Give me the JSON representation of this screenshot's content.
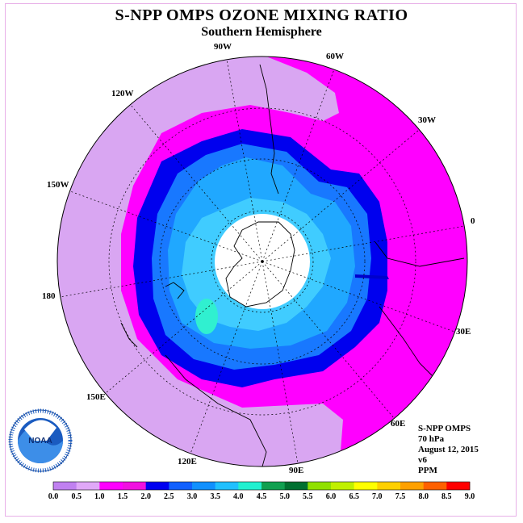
{
  "title": "S-NPP OMPS OZONE MIXING RATIO",
  "subtitle": "Southern Hemisphere",
  "longitude_labels": [
    {
      "id": "90w",
      "text": "90W"
    },
    {
      "id": "60w",
      "text": "60W"
    },
    {
      "id": "120w",
      "text": "120W"
    },
    {
      "id": "30w",
      "text": "30W"
    },
    {
      "id": "150w",
      "text": "150W"
    },
    {
      "id": "0",
      "text": "0"
    },
    {
      "id": "180",
      "text": "180"
    },
    {
      "id": "30e",
      "text": "30E"
    },
    {
      "id": "150e",
      "text": "150E"
    },
    {
      "id": "60e",
      "text": "60E"
    },
    {
      "id": "120e",
      "text": "120E"
    },
    {
      "id": "90e",
      "text": "90E"
    }
  ],
  "info": {
    "instrument": "S-NPP OMPS",
    "level": "70 hPa",
    "date": "August 12, 2015",
    "version": "v6",
    "units": "PPM"
  },
  "logo": {
    "text": "NOAA"
  },
  "colorbar": {
    "labels": [
      "0.0",
      "0.5",
      "1.0",
      "1.5",
      "2.0",
      "2.5",
      "3.0",
      "3.5",
      "4.0",
      "4.5",
      "5.0",
      "5.5",
      "6.0",
      "6.5",
      "7.0",
      "7.5",
      "8.0",
      "8.5",
      "9.0"
    ],
    "colors": [
      "#c080f0",
      "#e0a8f8",
      "#ff00ff",
      "#f010e0",
      "#0000f0",
      "#1060ff",
      "#1090ff",
      "#20c0ff",
      "#20f0d0",
      "#10a050",
      "#007030",
      "#90e000",
      "#c0f000",
      "#ffff00",
      "#ffd000",
      "#ffa000",
      "#ff6000",
      "#ff0000",
      "#806040"
    ]
  },
  "colors": {
    "outer_violet": "#d9a6f2",
    "magenta": "#ff00ff",
    "dark_blue": "#0000ee",
    "mid_blue": "#1878ff",
    "light_blue": "#20a8ff",
    "cyan": "#40ccff",
    "aqua": "#30f0d0",
    "pole_hole": "#ffffff"
  }
}
